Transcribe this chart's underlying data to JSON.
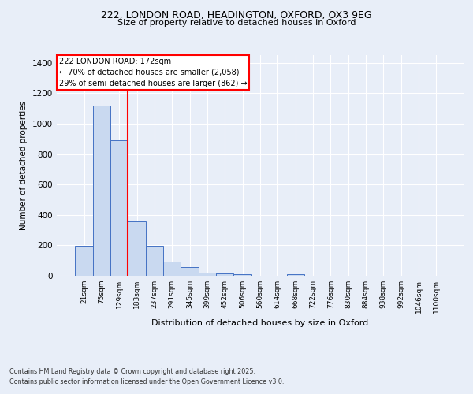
{
  "title_line1": "222, LONDON ROAD, HEADINGTON, OXFORD, OX3 9EG",
  "title_line2": "Size of property relative to detached houses in Oxford",
  "xlabel": "Distribution of detached houses by size in Oxford",
  "ylabel": "Number of detached properties",
  "categories": [
    "21sqm",
    "75sqm",
    "129sqm",
    "183sqm",
    "237sqm",
    "291sqm",
    "345sqm",
    "399sqm",
    "452sqm",
    "506sqm",
    "560sqm",
    "614sqm",
    "668sqm",
    "722sqm",
    "776sqm",
    "830sqm",
    "884sqm",
    "938sqm",
    "992sqm",
    "1046sqm",
    "1100sqm"
  ],
  "values": [
    197,
    1120,
    893,
    355,
    197,
    93,
    57,
    20,
    17,
    10,
    0,
    0,
    10,
    0,
    0,
    0,
    0,
    0,
    0,
    0,
    0
  ],
  "bar_color": "#c9d9f0",
  "bar_edge_color": "#4472c4",
  "vline_color": "red",
  "annotation_title": "222 LONDON ROAD: 172sqm",
  "annotation_line2": "← 70% of detached houses are smaller (2,058)",
  "annotation_line3": "29% of semi-detached houses are larger (862) →",
  "annotation_box_color": "red",
  "background_color": "#e8eef8",
  "grid_color": "white",
  "ylim": [
    0,
    1450
  ],
  "yticks": [
    0,
    200,
    400,
    600,
    800,
    1000,
    1200,
    1400
  ],
  "footnote_line1": "Contains HM Land Registry data © Crown copyright and database right 2025.",
  "footnote_line2": "Contains public sector information licensed under the Open Government Licence v3.0."
}
